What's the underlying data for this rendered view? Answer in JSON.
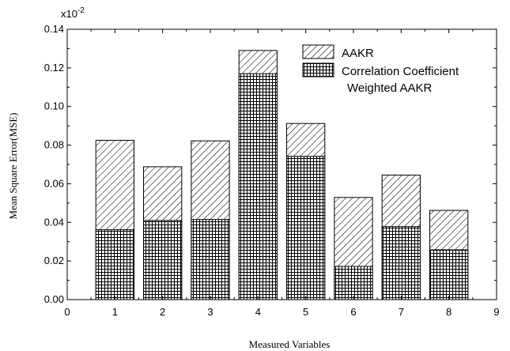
{
  "chart_data": {
    "type": "bar",
    "multiplier": "x10",
    "multiplier_exp": "-2",
    "xlabel": "Measured Variables",
    "ylabel": "Mean Square Error(MSE)",
    "categories": [
      "1",
      "2",
      "3",
      "4",
      "5",
      "6",
      "7",
      "8"
    ],
    "xlim": [
      0,
      9
    ],
    "xticks": [
      "0",
      "1",
      "2",
      "3",
      "4",
      "5",
      "6",
      "7",
      "8",
      "9"
    ],
    "ylim": [
      0,
      0.14
    ],
    "yticks": [
      "0.00",
      "0.02",
      "0.04",
      "0.06",
      "0.08",
      "0.10",
      "0.12",
      "0.14"
    ],
    "grid": false,
    "overlaid": true,
    "legend_position": "top-right",
    "series": [
      {
        "name": "AAKR",
        "pattern": "diagonal-hatch",
        "values": [
          0.0825,
          0.0688,
          0.0822,
          0.129,
          0.0912,
          0.0529,
          0.0645,
          0.0462
        ]
      },
      {
        "name": "Correlation Coefficient Weighted AAKR",
        "legend_lines": [
          "Correlation Coefficient",
          "Weighted AAKR"
        ],
        "pattern": "cross-hatch",
        "values": [
          0.0362,
          0.041,
          0.0415,
          0.117,
          0.0742,
          0.0172,
          0.0378,
          0.0258
        ]
      }
    ],
    "colors": {
      "ink": "#000000",
      "background": "#ffffff"
    }
  }
}
